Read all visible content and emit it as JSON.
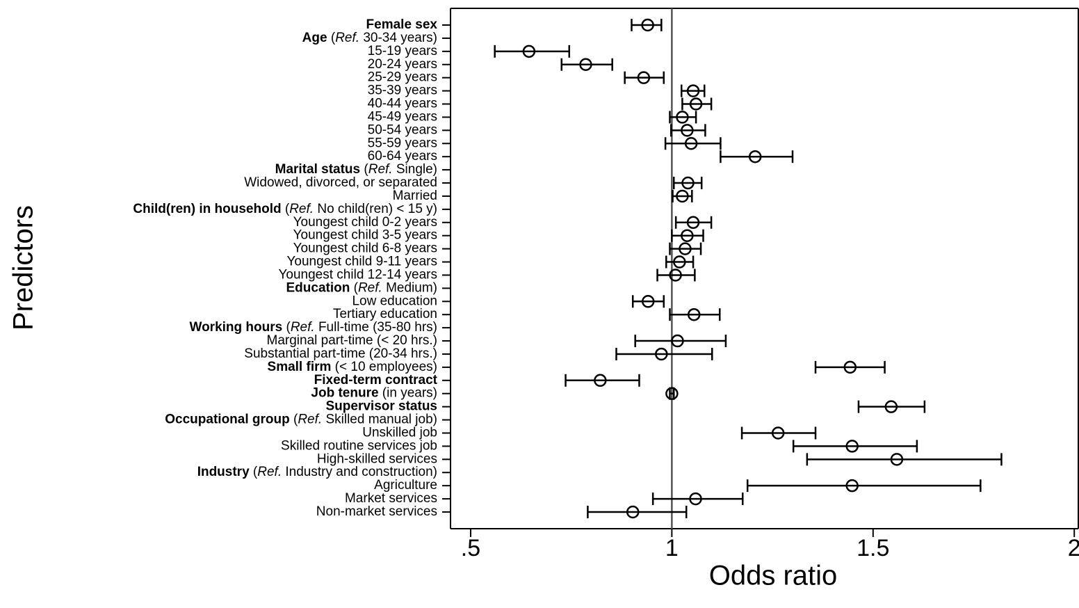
{
  "chart_data": {
    "type": "forest",
    "xlabel": "Odds ratio",
    "ylabel": "Predictors",
    "xlim": [
      0.45,
      2.01
    ],
    "xticks": [
      {
        "value": 0.5,
        "label": ".5"
      },
      1,
      1.5,
      2
    ],
    "ref_line": 1,
    "color": "#000000",
    "categories": [
      [
        {
          "text": "Female sex",
          "style": "bold"
        }
      ],
      [
        {
          "text": "Age",
          "style": "bold"
        },
        {
          "text": " ("
        },
        {
          "text": "Ref.",
          "style": "italic"
        },
        {
          "text": " 30-34 years)"
        }
      ],
      [
        {
          "text": "15-19 years"
        }
      ],
      [
        {
          "text": "20-24 years"
        }
      ],
      [
        {
          "text": "25-29 years"
        }
      ],
      [
        {
          "text": "35-39 years"
        }
      ],
      [
        {
          "text": "40-44 years"
        }
      ],
      [
        {
          "text": "45-49 years"
        }
      ],
      [
        {
          "text": "50-54 years"
        }
      ],
      [
        {
          "text": "55-59 years"
        }
      ],
      [
        {
          "text": "60-64 years"
        }
      ],
      [
        {
          "text": "Marital status",
          "style": "bold"
        },
        {
          "text": " ("
        },
        {
          "text": "Ref.",
          "style": "italic"
        },
        {
          "text": " Single)"
        }
      ],
      [
        {
          "text": "Widowed, divorced, or separated"
        }
      ],
      [
        {
          "text": "Married"
        }
      ],
      [
        {
          "text": "Child(ren) in household",
          "style": "bold"
        },
        {
          "text": " ("
        },
        {
          "text": "Ref.",
          "style": "italic"
        },
        {
          "text": " No child(ren) < 15 y)"
        }
      ],
      [
        {
          "text": "Youngest child 0-2 years"
        }
      ],
      [
        {
          "text": "Youngest child 3-5 years"
        }
      ],
      [
        {
          "text": "Youngest child 6-8 years"
        }
      ],
      [
        {
          "text": "Youngest child 9-11 years"
        }
      ],
      [
        {
          "text": "Youngest child 12-14 years"
        }
      ],
      [
        {
          "text": "Education",
          "style": "bold"
        },
        {
          "text": " ("
        },
        {
          "text": "Ref.",
          "style": "italic"
        },
        {
          "text": " Medium)"
        }
      ],
      [
        {
          "text": "Low education"
        }
      ],
      [
        {
          "text": "Tertiary education"
        }
      ],
      [
        {
          "text": "Working hours",
          "style": "bold"
        },
        {
          "text": " ("
        },
        {
          "text": "Ref.",
          "style": "italic"
        },
        {
          "text": " Full-time (35-80 hrs)"
        }
      ],
      [
        {
          "text": "Marginal part-time (< 20 hrs.)"
        }
      ],
      [
        {
          "text": "Substantial part-time (20-34 hrs.)"
        }
      ],
      [
        {
          "text": "Small firm",
          "style": "bold"
        },
        {
          "text": " (< 10 employees)"
        }
      ],
      [
        {
          "text": "Fixed-term contract",
          "style": "bold"
        }
      ],
      [
        {
          "text": "Job tenure",
          "style": "bold"
        },
        {
          "text": " (in years)"
        }
      ],
      [
        {
          "text": "Supervisor status",
          "style": "bold"
        }
      ],
      [
        {
          "text": "Occupational group",
          "style": "bold"
        },
        {
          "text": " ("
        },
        {
          "text": "Ref.",
          "style": "italic"
        },
        {
          "text": " Skilled manual job)"
        }
      ],
      [
        {
          "text": "Unskilled job"
        }
      ],
      [
        {
          "text": "Skilled routine services job"
        }
      ],
      [
        {
          "text": "High-skilled services"
        }
      ],
      [
        {
          "text": "Industry",
          "style": "bold"
        },
        {
          "text": " ("
        },
        {
          "text": "Ref.",
          "style": "italic"
        },
        {
          "text": " Industry and construction)"
        }
      ],
      [
        {
          "text": "Agriculture"
        }
      ],
      [
        {
          "text": "Market services"
        }
      ],
      [
        {
          "text": "Non-market services"
        }
      ]
    ],
    "values": [
      0.94,
      null,
      0.645,
      0.786,
      0.93,
      1.053,
      1.06,
      1.026,
      1.038,
      1.048,
      1.207,
      null,
      1.04,
      1.026,
      null,
      1.053,
      1.038,
      1.033,
      1.019,
      1.009,
      null,
      0.941,
      1.055,
      null,
      1.014,
      0.974,
      1.443,
      0.822,
      1.0,
      1.545,
      null,
      1.264,
      1.448,
      1.559,
      null,
      1.448,
      1.059,
      0.903
    ],
    "lower": [
      0.9,
      null,
      0.56,
      0.726,
      0.883,
      1.024,
      1.026,
      0.995,
      0.998,
      0.984,
      1.121,
      null,
      1.005,
      1.002,
      null,
      1.01,
      1.0,
      0.995,
      0.986,
      0.964,
      null,
      0.903,
      0.995,
      null,
      0.909,
      0.862,
      1.357,
      0.736,
      0.995,
      1.464,
      null,
      1.174,
      1.302,
      1.336,
      null,
      1.188,
      0.953,
      0.791
    ],
    "upper": [
      0.974,
      null,
      0.745,
      0.852,
      0.98,
      1.081,
      1.098,
      1.06,
      1.083,
      1.121,
      1.3,
      null,
      1.074,
      1.05,
      null,
      1.098,
      1.078,
      1.072,
      1.053,
      1.057,
      null,
      0.98,
      1.119,
      null,
      1.134,
      1.1,
      1.529,
      0.919,
      1.005,
      1.628,
      null,
      1.357,
      1.609,
      1.819,
      null,
      1.767,
      1.176,
      1.036
    ]
  }
}
